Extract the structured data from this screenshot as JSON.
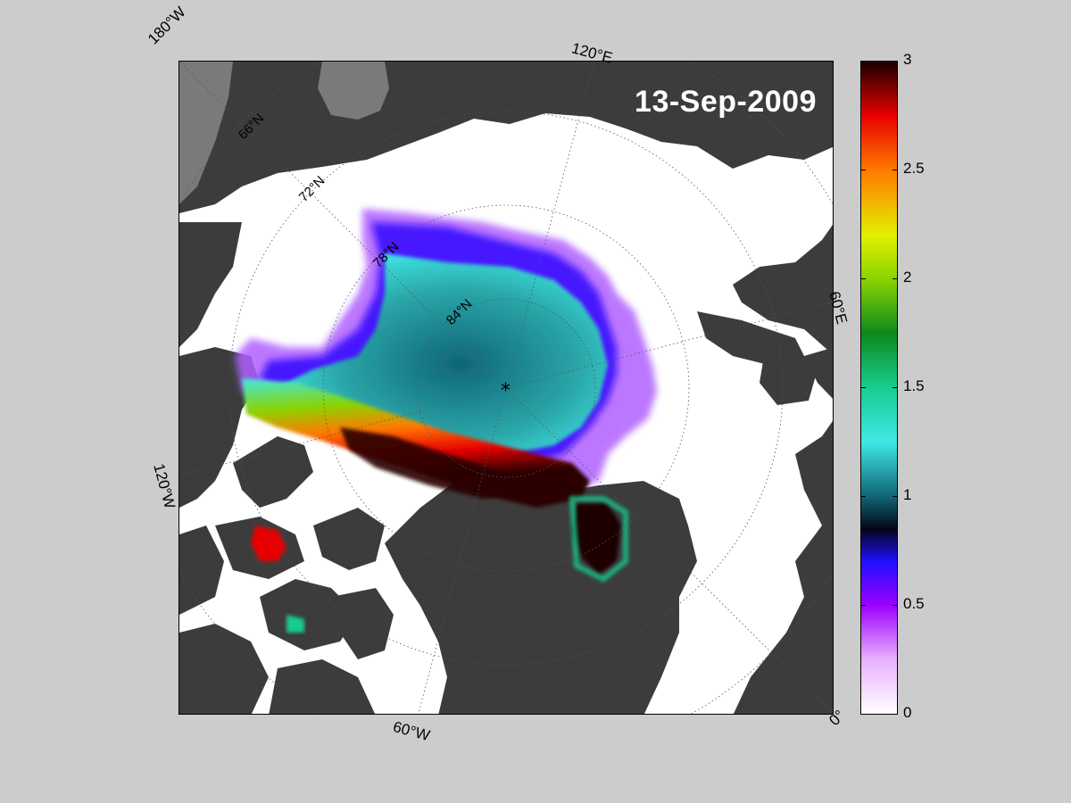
{
  "map": {
    "date": "13-Sep-2009",
    "meridian_labels": {
      "lon_180w": "180°W",
      "lon_120e": "120°E",
      "lon_60e": "60°E",
      "lon_120w": "120°W",
      "lon_60w": "60°W",
      "lon_0": "0°"
    },
    "parallel_labels": {
      "lat_66": "66°N",
      "lat_72": "72°N",
      "lat_78": "78°N",
      "lat_84": "84°N"
    },
    "pole_marker": "*",
    "colors": {
      "land": "#3c3c3c",
      "open_water": "#ffffff",
      "background": "#cccccc"
    }
  },
  "colorbar": {
    "ticks": [
      "3",
      "2.5",
      "2",
      "1.5",
      "1",
      "0.5",
      "0"
    ],
    "range": [
      0,
      3
    ],
    "stops": [
      {
        "v": 0.0,
        "c": "#ffffff"
      },
      {
        "v": 0.25,
        "c": "#e8b0ff"
      },
      {
        "v": 0.5,
        "c": "#9b00ff"
      },
      {
        "v": 0.7,
        "c": "#1f10ff"
      },
      {
        "v": 0.85,
        "c": "#050518"
      },
      {
        "v": 1.0,
        "c": "#0f6577"
      },
      {
        "v": 1.25,
        "c": "#3fe8e6"
      },
      {
        "v": 1.5,
        "c": "#18cc90"
      },
      {
        "v": 1.75,
        "c": "#0d8a1a"
      },
      {
        "v": 2.0,
        "c": "#8ad400"
      },
      {
        "v": 2.2,
        "c": "#e3f000"
      },
      {
        "v": 2.5,
        "c": "#ff7a00"
      },
      {
        "v": 2.75,
        "c": "#e80000"
      },
      {
        "v": 3.0,
        "c": "#1a0000"
      }
    ]
  }
}
